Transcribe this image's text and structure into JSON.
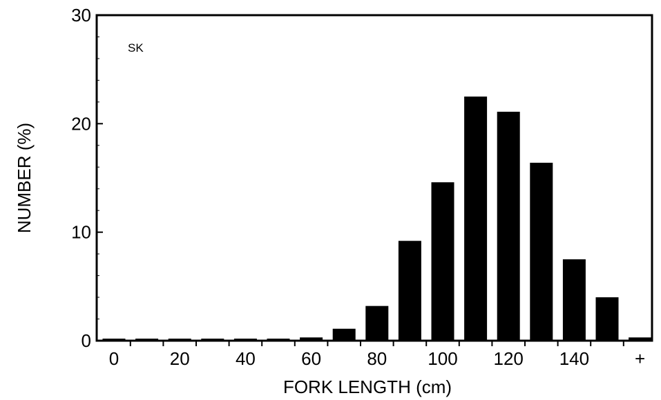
{
  "chart_data": {
    "type": "bar",
    "annotation": "SK",
    "xlabel": "FORK LENGTH (cm)",
    "ylabel": "NUMBER (%)",
    "ylim": [
      0,
      30
    ],
    "yticks": [
      "0",
      "10",
      "20",
      "30"
    ],
    "xticks": [
      {
        "label": "0",
        "bin": 0
      },
      {
        "label": "20",
        "bin": 2
      },
      {
        "label": "40",
        "bin": 4
      },
      {
        "label": "60",
        "bin": 6
      },
      {
        "label": "80",
        "bin": 8
      },
      {
        "label": "100",
        "bin": 10
      },
      {
        "label": "120",
        "bin": 12
      },
      {
        "label": "140",
        "bin": 14
      },
      {
        "label": "+",
        "bin": 16
      }
    ],
    "bins": [
      0,
      10,
      20,
      30,
      40,
      50,
      60,
      70,
      80,
      90,
      100,
      110,
      120,
      130,
      140,
      150,
      "+"
    ],
    "values": [
      0,
      0,
      0,
      0,
      0,
      0,
      0.3,
      1.1,
      3.2,
      9.2,
      14.6,
      22.5,
      21.1,
      16.4,
      7.5,
      4.0,
      0.3
    ],
    "bar_color": "#000000",
    "grid": false
  }
}
